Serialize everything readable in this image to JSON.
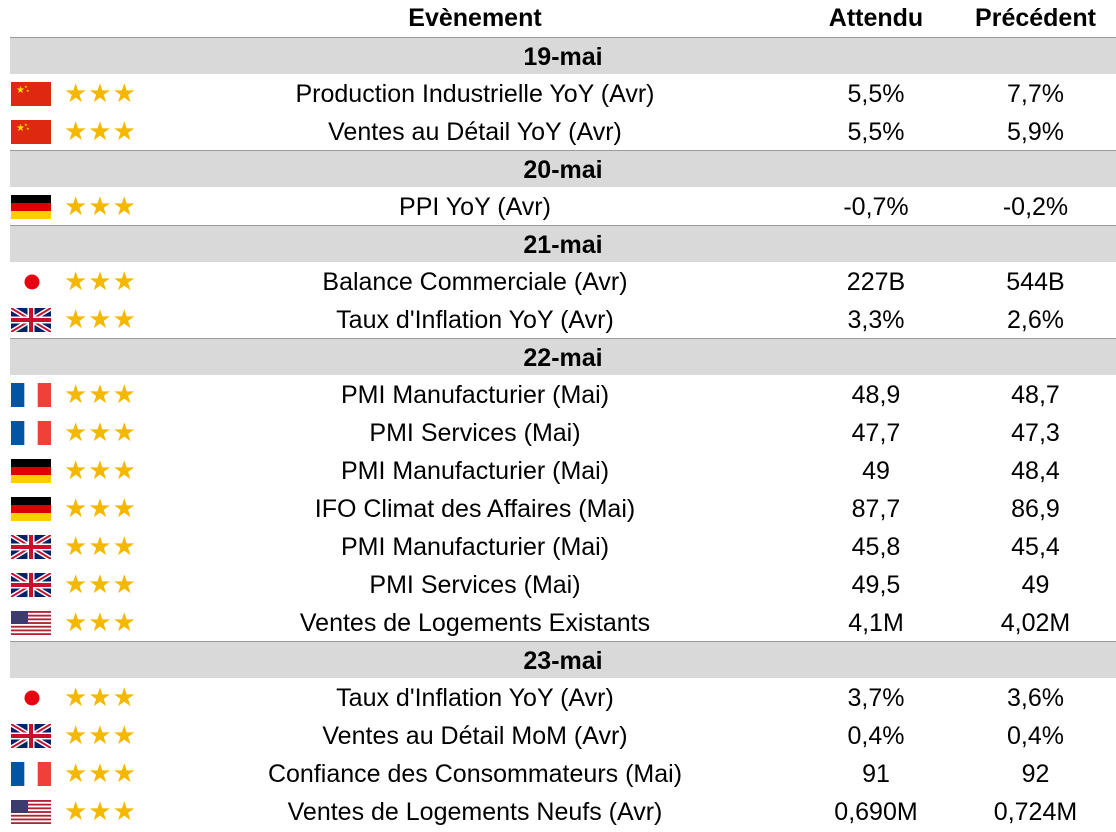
{
  "header": {
    "event": "Evènement",
    "expected": "Attendu",
    "previous": "Précédent"
  },
  "colors": {
    "date_band": "#d9d9d9",
    "stars": "#f5b800"
  },
  "groups": [
    {
      "date": "19-mai",
      "rows": [
        {
          "flag": "china-flag",
          "stars": "★★★",
          "event": "Production Industrielle YoY (Avr)",
          "expected": "5,5%",
          "previous": "7,7%"
        },
        {
          "flag": "china-flag",
          "stars": "★★★",
          "event": "Ventes au Détail YoY (Avr)",
          "expected": "5,5%",
          "previous": "5,9%"
        }
      ]
    },
    {
      "date": "20-mai",
      "rows": [
        {
          "flag": "germany-flag",
          "stars": "★★★",
          "event": "PPI YoY (Avr)",
          "expected": "-0,7%",
          "previous": "-0,2%"
        }
      ]
    },
    {
      "date": "21-mai",
      "rows": [
        {
          "flag": "japan-flag",
          "stars": "★★★",
          "event": "Balance Commerciale (Avr)",
          "expected": "227B",
          "previous": "544B"
        },
        {
          "flag": "uk-flag",
          "stars": "★★★",
          "event": "Taux d'Inflation YoY (Avr)",
          "expected": "3,3%",
          "previous": "2,6%"
        }
      ]
    },
    {
      "date": "22-mai",
      "rows": [
        {
          "flag": "france-flag",
          "stars": "★★★",
          "event": "PMI Manufacturier (Mai)",
          "expected": "48,9",
          "previous": "48,7"
        },
        {
          "flag": "france-flag",
          "stars": "★★★",
          "event": "PMI Services (Mai)",
          "expected": "47,7",
          "previous": "47,3"
        },
        {
          "flag": "germany-flag",
          "stars": "★★★",
          "event": "PMI Manufacturier (Mai)",
          "expected": "49",
          "previous": "48,4"
        },
        {
          "flag": "germany-flag",
          "stars": "★★★",
          "event": "IFO Climat des Affaires (Mai)",
          "expected": "87,7",
          "previous": "86,9"
        },
        {
          "flag": "uk-flag",
          "stars": "★★★",
          "event": "PMI Manufacturier (Mai)",
          "expected": "45,8",
          "previous": "45,4"
        },
        {
          "flag": "uk-flag",
          "stars": "★★★",
          "event": "PMI Services (Mai)",
          "expected": "49,5",
          "previous": "49"
        },
        {
          "flag": "usa-flag",
          "stars": "★★★",
          "event": "Ventes de Logements Existants",
          "expected": "4,1M",
          "previous": "4,02M"
        }
      ]
    },
    {
      "date": "23-mai",
      "rows": [
        {
          "flag": "japan-flag",
          "stars": "★★★",
          "event": "Taux d'Inflation YoY (Avr)",
          "expected": "3,7%",
          "previous": "3,6%"
        },
        {
          "flag": "uk-flag",
          "stars": "★★★",
          "event": "Ventes au Détail MoM (Avr)",
          "expected": "0,4%",
          "previous": "0,4%"
        },
        {
          "flag": "france-flag",
          "stars": "★★★",
          "event": "Confiance des Consommateurs (Mai)",
          "expected": "91",
          "previous": "92"
        },
        {
          "flag": "usa-flag",
          "stars": "★★★",
          "event": "Ventes de Logements Neufs (Avr)",
          "expected": "0,690M",
          "previous": "0,724M"
        }
      ]
    }
  ]
}
